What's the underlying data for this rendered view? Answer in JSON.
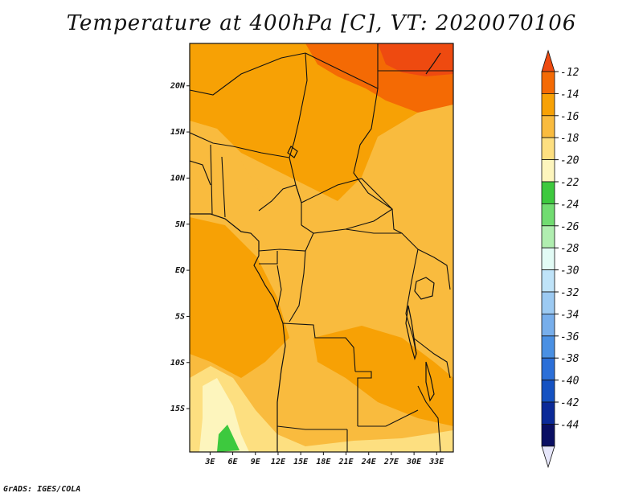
{
  "title": "Temperature at 400hPa [C], VT: 2020070106",
  "credit": "GrADS: IGES/COLA",
  "map": {
    "lat_labels": [
      "20N",
      "15N",
      "10N",
      "5N",
      "EQ",
      "5S",
      "10S",
      "15S"
    ],
    "lat_values": [
      20,
      15,
      10,
      5,
      0,
      -5,
      -10,
      -15
    ],
    "lon_labels": [
      "3E",
      "6E",
      "9E",
      "12E",
      "15E",
      "18E",
      "21E",
      "24E",
      "27E",
      "30E",
      "33E"
    ],
    "lon_values": [
      3,
      6,
      9,
      12,
      15,
      18,
      21,
      24,
      27,
      30,
      33
    ],
    "lat_range": [
      -19.7,
      24.6
    ],
    "lon_range": [
      0.3,
      35.2
    ]
  },
  "colorbar": {
    "labels": [
      "-12",
      "-14",
      "-16",
      "-18",
      "-20",
      "-22",
      "-24",
      "-26",
      "-28",
      "-30",
      "-32",
      "-34",
      "-36",
      "-38",
      "-40",
      "-42",
      "-44"
    ],
    "colors": [
      "#ee4a10",
      "#f46a04",
      "#f7a105",
      "#f9bb3e",
      "#fddf80",
      "#fdf5bd",
      "#3dc93e",
      "#71dc71",
      "#b0eeb0",
      "#e2fbf5",
      "#bfe3f8",
      "#9ccaf2",
      "#77aeeb",
      "#4a90e3",
      "#2b6fd8",
      "#1552c2",
      "#0b2a98",
      "#0a0f63",
      "#e6e6fa"
    ]
  }
}
